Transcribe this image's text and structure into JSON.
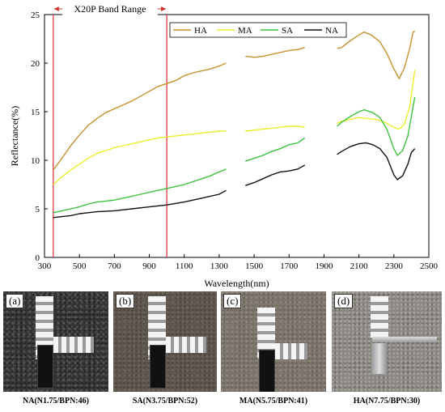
{
  "chart_data": {
    "type": "line",
    "xlabel": "Wavelength(nm)",
    "ylabel": "Reflectance(%)",
    "xlim": [
      300,
      2500
    ],
    "ylim": [
      0,
      25
    ],
    "xticks": [
      300,
      500,
      700,
      900,
      1100,
      1300,
      1500,
      1700,
      1900,
      2100,
      2300,
      2500
    ],
    "yticks": [
      0,
      5,
      10,
      15,
      20,
      25
    ],
    "band_annotation": {
      "label": "X20P Band Range",
      "range": [
        350,
        1000
      ],
      "color": "#d0312d"
    },
    "legend_position": "top-right",
    "series": [
      {
        "name": "HA",
        "color": "#c8902b",
        "segments": [
          [
            [
              350,
              9.0
            ],
            [
              400,
              10.2
            ],
            [
              450,
              11.5
            ],
            [
              500,
              12.6
            ],
            [
              550,
              13.6
            ],
            [
              600,
              14.3
            ],
            [
              650,
              14.9
            ],
            [
              700,
              15.3
            ],
            [
              750,
              15.7
            ],
            [
              800,
              16.1
            ],
            [
              850,
              16.6
            ],
            [
              900,
              17.1
            ],
            [
              950,
              17.6
            ],
            [
              1000,
              17.9
            ],
            [
              1050,
              18.2
            ],
            [
              1100,
              18.7
            ],
            [
              1150,
              19.0
            ],
            [
              1200,
              19.2
            ],
            [
              1250,
              19.4
            ],
            [
              1300,
              19.7
            ],
            [
              1340,
              20.0
            ]
          ],
          [
            [
              1450,
              20.7
            ],
            [
              1500,
              20.6
            ],
            [
              1550,
              20.7
            ],
            [
              1600,
              20.9
            ],
            [
              1650,
              21.1
            ],
            [
              1700,
              21.3
            ],
            [
              1750,
              21.4
            ],
            [
              1790,
              21.6
            ]
          ],
          [
            [
              1975,
              21.5
            ],
            [
              2000,
              21.6
            ],
            [
              2050,
              22.3
            ],
            [
              2100,
              22.9
            ],
            [
              2130,
              23.2
            ],
            [
              2170,
              22.9
            ],
            [
              2220,
              22.2
            ],
            [
              2260,
              21.0
            ],
            [
              2300,
              19.4
            ],
            [
              2330,
              18.4
            ],
            [
              2360,
              19.5
            ],
            [
              2390,
              21.5
            ],
            [
              2410,
              23.2
            ],
            [
              2420,
              23.3
            ]
          ]
        ]
      },
      {
        "name": "MA",
        "color": "#eded2c",
        "segments": [
          [
            [
              350,
              7.5
            ],
            [
              400,
              8.3
            ],
            [
              450,
              9.0
            ],
            [
              500,
              9.6
            ],
            [
              550,
              10.2
            ],
            [
              600,
              10.7
            ],
            [
              650,
              11.0
            ],
            [
              700,
              11.3
            ],
            [
              750,
              11.5
            ],
            [
              800,
              11.7
            ],
            [
              850,
              11.9
            ],
            [
              900,
              12.1
            ],
            [
              950,
              12.3
            ],
            [
              1000,
              12.4
            ],
            [
              1100,
              12.6
            ],
            [
              1200,
              12.8
            ],
            [
              1300,
              13.0
            ],
            [
              1340,
              13.0
            ]
          ],
          [
            [
              1450,
              13.0
            ],
            [
              1500,
              13.1
            ],
            [
              1550,
              13.2
            ],
            [
              1600,
              13.3
            ],
            [
              1650,
              13.4
            ],
            [
              1700,
              13.5
            ],
            [
              1750,
              13.5
            ],
            [
              1790,
              13.4
            ]
          ],
          [
            [
              1975,
              13.8
            ],
            [
              2000,
              14.0
            ],
            [
              2050,
              14.2
            ],
            [
              2100,
              14.4
            ],
            [
              2150,
              14.3
            ],
            [
              2200,
              14.2
            ],
            [
              2250,
              13.9
            ],
            [
              2300,
              13.4
            ],
            [
              2330,
              13.2
            ],
            [
              2360,
              13.7
            ],
            [
              2390,
              15.5
            ],
            [
              2410,
              18.0
            ],
            [
              2420,
              19.3
            ]
          ]
        ]
      },
      {
        "name": "SA",
        "color": "#3cc43c",
        "segments": [
          [
            [
              350,
              4.6
            ],
            [
              400,
              4.8
            ],
            [
              450,
              5.0
            ],
            [
              500,
              5.2
            ],
            [
              550,
              5.5
            ],
            [
              600,
              5.7
            ],
            [
              650,
              5.8
            ],
            [
              700,
              5.9
            ],
            [
              750,
              6.1
            ],
            [
              800,
              6.3
            ],
            [
              850,
              6.5
            ],
            [
              900,
              6.7
            ],
            [
              950,
              6.9
            ],
            [
              1000,
              7.1
            ],
            [
              1050,
              7.3
            ],
            [
              1100,
              7.5
            ],
            [
              1150,
              7.8
            ],
            [
              1200,
              8.1
            ],
            [
              1250,
              8.4
            ],
            [
              1300,
              8.8
            ],
            [
              1340,
              9.1
            ]
          ],
          [
            [
              1450,
              9.9
            ],
            [
              1500,
              10.2
            ],
            [
              1550,
              10.5
            ],
            [
              1600,
              10.9
            ],
            [
              1650,
              11.2
            ],
            [
              1700,
              11.6
            ],
            [
              1750,
              11.8
            ],
            [
              1790,
              12.3
            ]
          ],
          [
            [
              1975,
              13.5
            ],
            [
              2000,
              13.9
            ],
            [
              2050,
              14.5
            ],
            [
              2100,
              15.0
            ],
            [
              2130,
              15.2
            ],
            [
              2180,
              14.9
            ],
            [
              2220,
              14.4
            ],
            [
              2260,
              13.2
            ],
            [
              2300,
              11.2
            ],
            [
              2320,
              10.5
            ],
            [
              2350,
              11.0
            ],
            [
              2380,
              12.5
            ],
            [
              2400,
              14.5
            ],
            [
              2420,
              16.5
            ]
          ]
        ]
      },
      {
        "name": "NA",
        "color": "#111111",
        "segments": [
          [
            [
              350,
              4.1
            ],
            [
              400,
              4.2
            ],
            [
              450,
              4.3
            ],
            [
              500,
              4.5
            ],
            [
              550,
              4.6
            ],
            [
              600,
              4.7
            ],
            [
              700,
              4.8
            ],
            [
              800,
              5.0
            ],
            [
              900,
              5.2
            ],
            [
              1000,
              5.4
            ],
            [
              1100,
              5.7
            ],
            [
              1200,
              6.1
            ],
            [
              1300,
              6.5
            ],
            [
              1340,
              6.9
            ]
          ],
          [
            [
              1450,
              7.4
            ],
            [
              1500,
              7.7
            ],
            [
              1550,
              8.1
            ],
            [
              1600,
              8.5
            ],
            [
              1650,
              8.8
            ],
            [
              1700,
              8.9
            ],
            [
              1750,
              9.1
            ],
            [
              1790,
              9.5
            ]
          ],
          [
            [
              1975,
              10.6
            ],
            [
              2000,
              10.9
            ],
            [
              2050,
              11.4
            ],
            [
              2100,
              11.7
            ],
            [
              2140,
              11.8
            ],
            [
              2180,
              11.6
            ],
            [
              2220,
              11.2
            ],
            [
              2260,
              10.3
            ],
            [
              2300,
              8.5
            ],
            [
              2320,
              8.0
            ],
            [
              2350,
              8.4
            ],
            [
              2380,
              9.6
            ],
            [
              2400,
              10.8
            ],
            [
              2420,
              11.2
            ]
          ]
        ]
      }
    ]
  },
  "panels": [
    {
      "letter": "(a)",
      "caption": "NA(N1.75/BPN:46)"
    },
    {
      "letter": "(b)",
      "caption": "SA(N3.75/BPN:52)"
    },
    {
      "letter": "(c)",
      "caption": "MA(N5.75/BPN:41)"
    },
    {
      "letter": "(d)",
      "caption": "HA(N7.75/BPN:30)"
    }
  ]
}
